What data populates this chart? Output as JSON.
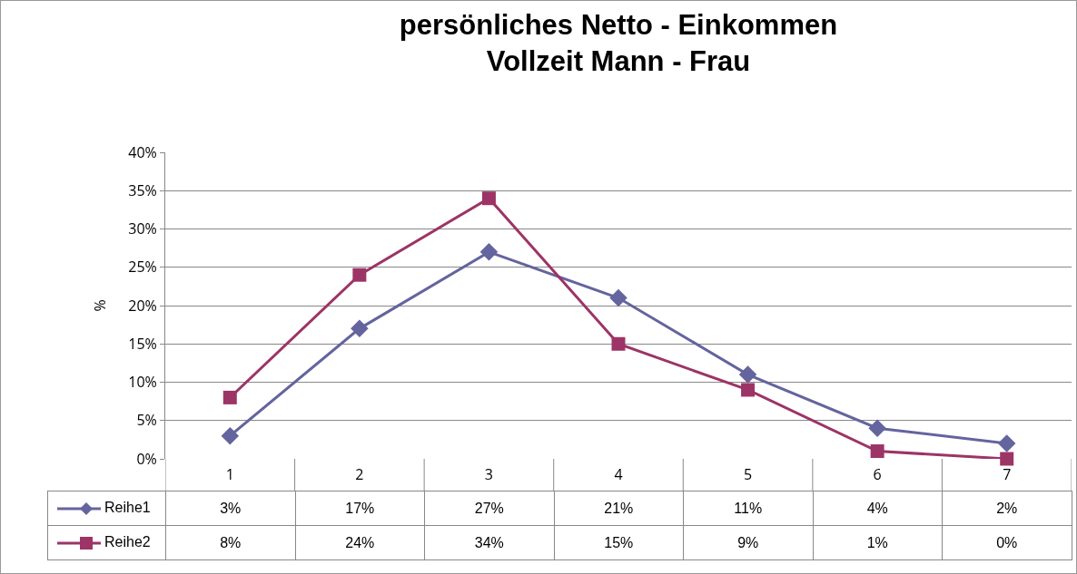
{
  "chart_data": {
    "type": "line",
    "title": "persönliches Netto - Einkommen\nVollzeit Mann - Frau",
    "ylabel": "%",
    "categories": [
      "1",
      "2",
      "3",
      "4",
      "5",
      "6",
      "7"
    ],
    "series": [
      {
        "name": "Reihe1",
        "color": "#64649e",
        "marker": "diamond",
        "values": [
          3,
          17,
          27,
          21,
          11,
          4,
          2
        ],
        "value_labels": [
          "3%",
          "17%",
          "27%",
          "21%",
          "11%",
          "4%",
          "2%"
        ]
      },
      {
        "name": "Reihe2",
        "color": "#9c3466",
        "marker": "square",
        "values": [
          8,
          24,
          34,
          15,
          9,
          1,
          0
        ],
        "value_labels": [
          "8%",
          "24%",
          "34%",
          "15%",
          "9%",
          "1%",
          "0%"
        ]
      }
    ],
    "ylim": [
      0,
      40
    ],
    "yticks": [
      {
        "value": 0,
        "label": "0%"
      },
      {
        "value": 5,
        "label": "5%"
      },
      {
        "value": 10,
        "label": "10%"
      },
      {
        "value": 15,
        "label": "15%"
      },
      {
        "value": 20,
        "label": "20%"
      },
      {
        "value": 25,
        "label": "25%"
      },
      {
        "value": 30,
        "label": "30%"
      },
      {
        "value": 35,
        "label": "35%"
      },
      {
        "value": 40,
        "label": "40%"
      }
    ],
    "grid": "y",
    "legend": "bottom",
    "line_style": "solid"
  }
}
